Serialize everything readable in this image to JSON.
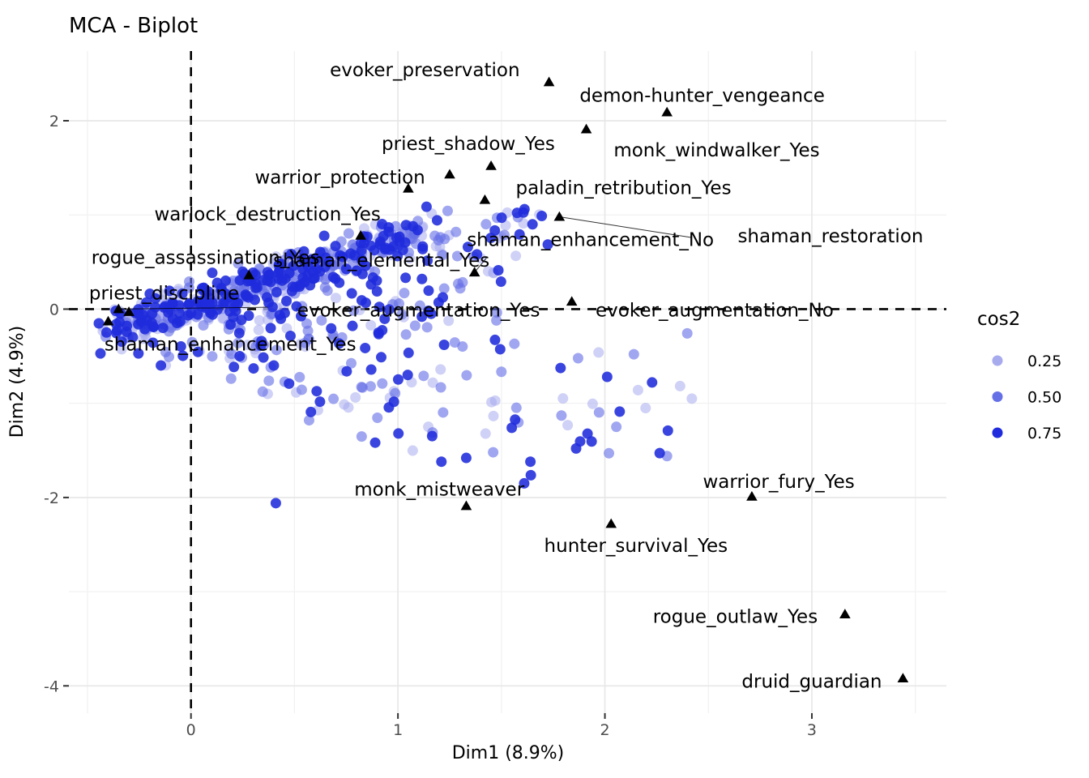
{
  "page": {
    "title": "MCA - Biplot"
  },
  "chart_data": {
    "type": "scatter",
    "title": "MCA - Biplot",
    "xlabel": "Dim1 (8.9%)",
    "ylabel": "Dim2 (4.9%)",
    "xlim": [
      -0.59,
      3.65
    ],
    "ylim": [
      -4.29,
      2.74
    ],
    "x_major_ticks": [
      0,
      1,
      2,
      3
    ],
    "x_minor_ticks": [
      -0.5,
      0.5,
      1.5,
      2.5,
      3.5
    ],
    "y_major_ticks": [
      2,
      0,
      -2,
      -4
    ],
    "y_minor_ticks": [
      1,
      -1,
      -3
    ],
    "grid": true,
    "reference_lines": {
      "vline_x": 0,
      "hline_y": 0,
      "style": "dashed",
      "color": "#000000"
    },
    "legend": {
      "title": "cos2",
      "position": "right",
      "items": [
        {
          "label": "0.25",
          "color": "#A7ABEE"
        },
        {
          "label": "0.50",
          "color": "#6570E6"
        },
        {
          "label": "0.75",
          "color": "#1F2BDC"
        }
      ]
    },
    "category_point_color": "#000000",
    "category_point_shape": "triangle",
    "categories": [
      {
        "label": "evoker_preservation",
        "x": 1.73,
        "y": 2.41,
        "label_x": 1.13,
        "label_y": 2.54
      },
      {
        "label": "demon-hunter_vengeance",
        "x": 2.3,
        "y": 2.09,
        "label_x": 2.47,
        "label_y": 2.27
      },
      {
        "label": "monk_windwalker_Yes",
        "x": 1.91,
        "y": 1.91,
        "label_x": 2.54,
        "label_y": 1.69
      },
      {
        "label": "priest_shadow_Yes",
        "x": 1.45,
        "y": 1.52,
        "label_x": 1.34,
        "label_y": 1.76
      },
      {
        "label": "warrior_protection",
        "x": 1.25,
        "y": 1.43,
        "label_x": 0.72,
        "label_y": 1.4
      },
      {
        "label": "paladin_retribution_Yes",
        "x": 1.42,
        "y": 1.16,
        "label_x": 2.09,
        "label_y": 1.29
      },
      {
        "label": "",
        "x": 1.05,
        "y": 1.28,
        "label_x": null,
        "label_y": null
      },
      {
        "label": "shaman_enhancement_No",
        "x": 1.78,
        "y": 0.98,
        "label_x": 1.93,
        "label_y": 0.74,
        "segment_to": [
          2.42,
          0.76
        ]
      },
      {
        "label": "shaman_restoration",
        "x": null,
        "y": null,
        "label_x": 3.09,
        "label_y": 0.78
      },
      {
        "label": "warlock_destruction_Yes",
        "x": 0.82,
        "y": 0.78,
        "label_x": 0.37,
        "label_y": 1.01
      },
      {
        "label": "shaman_elemental_Yes",
        "x": 1.37,
        "y": 0.39,
        "label_x": 0.92,
        "label_y": 0.52,
        "segment_to": [
          1.43,
          0.55
        ]
      },
      {
        "label": "rogue_assassination_Yes",
        "x": 0.28,
        "y": 0.36,
        "label_x": 0.07,
        "label_y": 0.55
      },
      {
        "label": "evoker_augmentation_Yes",
        "x": -0.35,
        "y": 0.0,
        "label_x": 1.1,
        "label_y": -0.01,
        "segment_to": [
          0.37,
          0.02
        ]
      },
      {
        "label": "priest_discipline",
        "x": -0.3,
        "y": -0.03,
        "label_x": -0.13,
        "label_y": 0.17
      },
      {
        "label": "shaman_enhancement_Yes",
        "x": -0.4,
        "y": -0.13,
        "label_x": 0.19,
        "label_y": -0.37
      },
      {
        "label": "evoker_augmentation_No",
        "x": 1.84,
        "y": 0.08,
        "label_x": 2.53,
        "label_y": -0.01
      },
      {
        "label": "monk_mistweaver",
        "x": 1.33,
        "y": -2.09,
        "label_x": 1.2,
        "label_y": -1.91
      },
      {
        "label": "warrior_fury_Yes",
        "x": 2.71,
        "y": -1.99,
        "label_x": 2.84,
        "label_y": -1.83
      },
      {
        "label": "hunter_survival_Yes",
        "x": 2.03,
        "y": -2.28,
        "label_x": 2.15,
        "label_y": -2.51
      },
      {
        "label": "rogue_outlaw_Yes",
        "x": 3.16,
        "y": -3.24,
        "label_x": 2.63,
        "label_y": -3.26
      },
      {
        "label": "druid_guardian",
        "x": 3.44,
        "y": -3.92,
        "label_x": 3.0,
        "label_y": -3.95
      }
    ],
    "individuals_cloud": {
      "note": "hundreds of individual observations colored by cos2 (0.25 light blue to 0.75 strong blue), generated from cluster summaries",
      "point_radius": 6.5,
      "seed": 1234567,
      "clusters": [
        {
          "name": "main-ridge",
          "n": 440,
          "x_start": -0.33,
          "x_end": 1.15,
          "slope": 0.69,
          "intercept": 0.05,
          "sigma_x": 0.07,
          "sigma_y": 0.105,
          "skew": 1.15
        },
        {
          "name": "lower-fan",
          "n": 230,
          "x_start": 0.22,
          "x_end": 1.7,
          "depth_base": 0.12,
          "depth_max": 2.92,
          "w_pow": 2.2
        },
        {
          "name": "lower-left-skirt",
          "n": 70,
          "x_start": -0.45,
          "x_end": 0.45,
          "y_top": -0.04,
          "y_depth": 0.62
        },
        {
          "name": "right-sparse",
          "n": 22,
          "x_start": 1.7,
          "x_end": 2.45,
          "y_top": -0.25,
          "y_depth": 1.35
        }
      ],
      "extra_points": [
        {
          "x": 0.41,
          "y": -2.06,
          "c": 2
        },
        {
          "x": 1.21,
          "y": -1.62,
          "c": 2
        },
        {
          "x": 1.33,
          "y": -1.58,
          "c": 2
        },
        {
          "x": 1.46,
          "y": -1.52,
          "c": 1
        },
        {
          "x": 1.64,
          "y": -1.62,
          "c": 2
        },
        {
          "x": 1.61,
          "y": -1.85,
          "c": 2
        },
        {
          "x": 2.16,
          "y": -0.86,
          "c": 0
        },
        {
          "x": 2.42,
          "y": -0.95,
          "c": 0
        },
        {
          "x": 2.3,
          "y": -1.56,
          "c": 1
        },
        {
          "x": 1.79,
          "y": -1.13,
          "c": 1
        },
        {
          "x": 1.55,
          "y": -1.26,
          "c": 2
        }
      ]
    }
  }
}
